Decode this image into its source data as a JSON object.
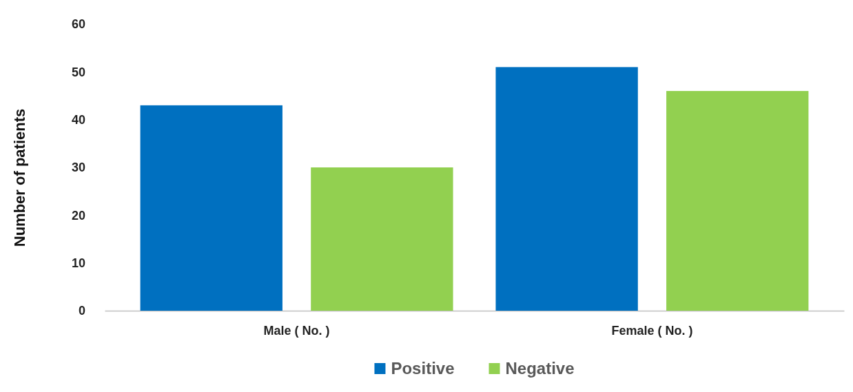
{
  "chart_data": {
    "type": "bar",
    "ylabel": "Number of patients",
    "categories": [
      "Male ( No. )",
      "Female ( No. )"
    ],
    "series": [
      {
        "name": "Positive",
        "color": "#0070c0",
        "values": [
          43,
          51
        ]
      },
      {
        "name": "Negative",
        "color": "#92d050",
        "values": [
          30,
          46
        ]
      }
    ],
    "ylim": [
      0,
      60
    ],
    "yticks": [
      0,
      10,
      20,
      30,
      40,
      50,
      60
    ],
    "grid": false,
    "legend": "bottom"
  }
}
